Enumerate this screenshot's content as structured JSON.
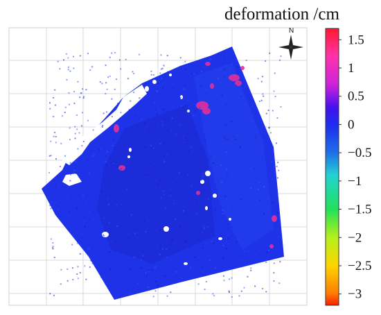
{
  "title": "deformation /cm",
  "north_label": "N",
  "colorbar": {
    "min": -3.2,
    "max": 1.7,
    "ticks": [
      "1.5",
      "1",
      "0.5",
      "0",
      "−0.5",
      "−1",
      "−1.5",
      "−2",
      "−2.5",
      "−3"
    ],
    "tick_values": [
      1.5,
      1,
      0.5,
      0,
      -0.5,
      -1,
      -1.5,
      -2,
      -2.5,
      -3
    ],
    "stops": [
      {
        "value": 1.7,
        "color": "#ff1a2e"
      },
      {
        "value": 1.2,
        "color": "#ff33aa"
      },
      {
        "value": 0.7,
        "color": "#cc22dd"
      },
      {
        "value": 0.3,
        "color": "#4411ee"
      },
      {
        "value": 0.0,
        "color": "#1d2cf0"
      },
      {
        "value": -0.5,
        "color": "#1f6fe8"
      },
      {
        "value": -0.9,
        "color": "#22d3d3"
      },
      {
        "value": -1.5,
        "color": "#22e05a"
      },
      {
        "value": -2.0,
        "color": "#b5f01a"
      },
      {
        "value": -2.5,
        "color": "#ffd500"
      },
      {
        "value": -3.0,
        "color": "#ff7a00"
      },
      {
        "value": -3.2,
        "color": "#ff1a00"
      }
    ]
  },
  "map": {
    "grid": true,
    "background_color": "#ffffff",
    "deformation_color": "#1e32e8",
    "uplift_color": "#e0309a"
  }
}
